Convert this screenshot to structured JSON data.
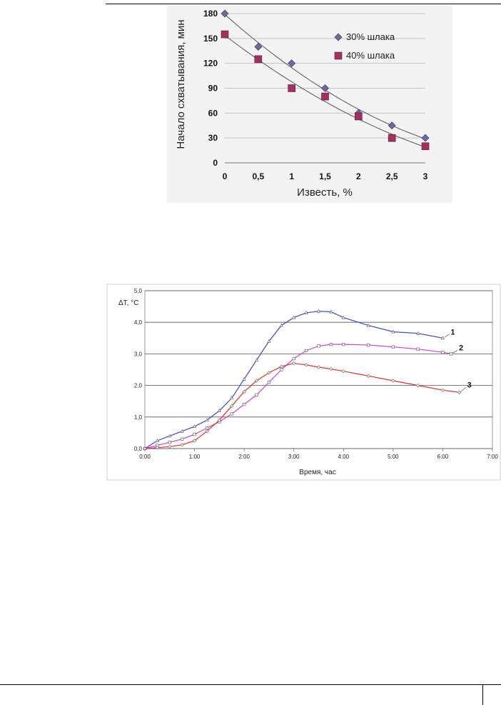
{
  "chart_data": [
    {
      "type": "scatter",
      "xlabel": "Известь, %",
      "ylabel": "Начало схватывания, мин",
      "xlim": [
        0,
        3
      ],
      "ylim": [
        0,
        180
      ],
      "x_ticks": [
        "0",
        "0,5",
        "1",
        "1,5",
        "2",
        "2,5",
        "3"
      ],
      "y_ticks": [
        "0",
        "30",
        "60",
        "90",
        "120",
        "150",
        "180"
      ],
      "grid": "horizontal",
      "legend_position": "top-right",
      "trendlines": true,
      "series": [
        {
          "name": "30% шлака",
          "marker": "diamond",
          "color": "#6a6aa8",
          "x": [
            0,
            0.5,
            1,
            1.5,
            2,
            2.5,
            3
          ],
          "y": [
            180,
            140,
            120,
            90,
            60,
            45,
            30
          ]
        },
        {
          "name": "40% шлака",
          "marker": "square",
          "color": "#a3305f",
          "x": [
            0,
            0.5,
            1,
            1.5,
            2,
            2.5,
            3
          ],
          "y": [
            155,
            125,
            90,
            80,
            56,
            30,
            20
          ]
        }
      ]
    },
    {
      "type": "line",
      "xlabel": "Время, час",
      "ylabel": "ΔT, °C",
      "xlim": [
        0,
        7
      ],
      "ylim": [
        0,
        5
      ],
      "x_ticks": [
        "0:00",
        "1:00",
        "2:00",
        "3:00",
        "4:00",
        "5:00",
        "6:00",
        "7:00"
      ],
      "y_ticks": [
        "0,0",
        "1,0",
        "2,0",
        "3,0",
        "4,0",
        "5,0"
      ],
      "grid": "horizontal",
      "series": [
        {
          "name": "1",
          "color": "#3a46c8",
          "x": [
            "0:00",
            "0:15",
            "0:30",
            "0:45",
            "1:00",
            "1:15",
            "1:30",
            "1:45",
            "2:00",
            "2:15",
            "2:30",
            "2:45",
            "3:00",
            "3:15",
            "3:30",
            "3:45",
            "4:00",
            "4:30",
            "5:00",
            "5:30",
            "6:00"
          ],
          "y": [
            0.0,
            0.25,
            0.4,
            0.55,
            0.7,
            0.9,
            1.2,
            1.6,
            2.2,
            2.8,
            3.4,
            3.9,
            4.15,
            4.3,
            4.35,
            4.33,
            4.15,
            3.9,
            3.7,
            3.65,
            3.5
          ]
        },
        {
          "name": "2",
          "color": "#d040d0",
          "x": [
            "0:00",
            "0:15",
            "0:30",
            "0:45",
            "1:00",
            "1:15",
            "1:30",
            "1:45",
            "2:00",
            "2:15",
            "2:30",
            "2:45",
            "3:00",
            "3:15",
            "3:30",
            "3:45",
            "4:00",
            "4:30",
            "5:00",
            "5:30",
            "6:00",
            "6:10"
          ],
          "y": [
            0.0,
            0.1,
            0.2,
            0.3,
            0.45,
            0.65,
            0.85,
            1.1,
            1.4,
            1.7,
            2.1,
            2.5,
            2.85,
            3.1,
            3.25,
            3.3,
            3.3,
            3.28,
            3.22,
            3.15,
            3.05,
            3.0
          ]
        },
        {
          "name": "3",
          "color": "#e03030",
          "x": [
            "0:00",
            "0:15",
            "0:30",
            "0:45",
            "1:00",
            "1:15",
            "1:30",
            "1:45",
            "2:00",
            "2:15",
            "2:30",
            "2:45",
            "3:00",
            "3:15",
            "3:30",
            "3:45",
            "4:00",
            "4:30",
            "5:00",
            "5:30",
            "6:00",
            "6:20"
          ],
          "y": [
            0.0,
            0.03,
            0.06,
            0.12,
            0.25,
            0.55,
            0.9,
            1.35,
            1.8,
            2.15,
            2.4,
            2.6,
            2.7,
            2.65,
            2.58,
            2.52,
            2.45,
            2.3,
            2.15,
            2.0,
            1.85,
            1.78
          ]
        }
      ]
    }
  ]
}
